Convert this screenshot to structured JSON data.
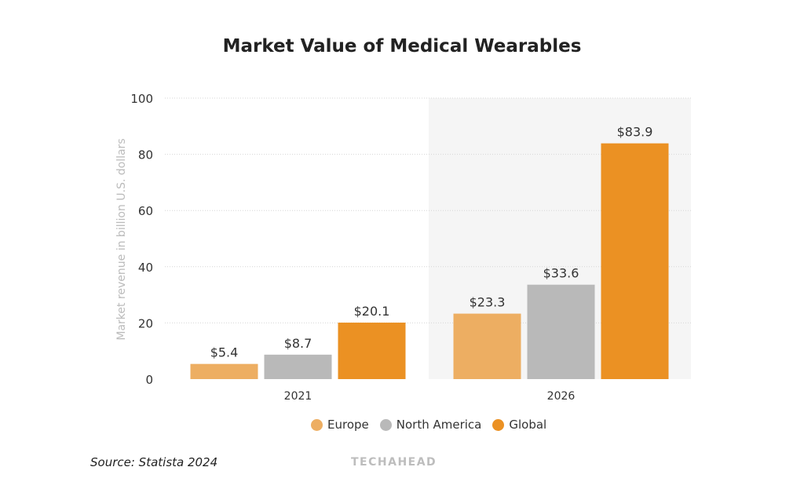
{
  "chart_data": {
    "type": "bar",
    "title": "Market Value of Medical Wearables",
    "ylabel": "Market revenue in billion U.S. dollars",
    "xlabel": "",
    "categories": [
      "2021",
      "2026"
    ],
    "series": [
      {
        "name": "Europe",
        "values": [
          5.4,
          23.3
        ],
        "labels": [
          "$5.4",
          "$23.3"
        ],
        "color": "#EDAE62"
      },
      {
        "name": "North America",
        "values": [
          8.7,
          33.6
        ],
        "labels": [
          "$8.7",
          "$33.6"
        ],
        "color": "#B9B9B9"
      },
      {
        "name": "Global",
        "values": [
          20.1,
          83.9
        ],
        "labels": [
          "$20.1",
          "$83.9"
        ],
        "color": "#EB9123"
      }
    ],
    "ylim": [
      0,
      100
    ],
    "yticks": [
      "0",
      "20",
      "40",
      "60",
      "80",
      "100"
    ],
    "grid": true,
    "highlighted_category": "2026",
    "legend_position": "bottom"
  },
  "footer": {
    "source": "Source: Statista 2024",
    "logo": "TECHAHEAD"
  }
}
